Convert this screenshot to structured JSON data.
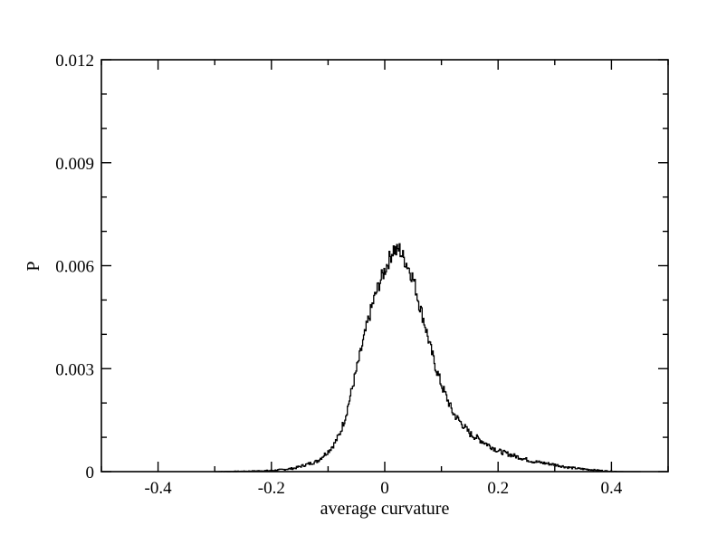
{
  "chart_data": {
    "type": "line",
    "title": "",
    "xlabel": "average curvature",
    "ylabel": "P",
    "xlim": [
      -0.5,
      0.5
    ],
    "ylim": [
      0,
      0.012
    ],
    "x_ticks": [
      -0.4,
      -0.2,
      0,
      0.2,
      0.4
    ],
    "x_tick_labels": [
      "-0.4",
      "-0.2",
      "0",
      "0.2",
      "0.4"
    ],
    "y_ticks": [
      0,
      0.003,
      0.006,
      0.009,
      0.012
    ],
    "y_tick_labels": [
      "0",
      "0.003",
      "0.006",
      "0.009",
      "0.012"
    ],
    "x_minor_step": 0.1,
    "y_minor_step": 0.001,
    "grid": false,
    "legend": "none",
    "series": [
      {
        "color": "#000000",
        "x": [
          -0.3,
          -0.25,
          -0.2,
          -0.18,
          -0.16,
          -0.14,
          -0.12,
          -0.1,
          -0.09,
          -0.08,
          -0.07,
          -0.06,
          -0.05,
          -0.04,
          -0.03,
          -0.02,
          -0.01,
          0.0,
          0.01,
          0.015,
          0.02,
          0.025,
          0.03,
          0.04,
          0.05,
          0.06,
          0.07,
          0.08,
          0.09,
          0.1,
          0.11,
          0.12,
          0.13,
          0.14,
          0.15,
          0.16,
          0.18,
          0.2,
          0.22,
          0.24,
          0.26,
          0.28,
          0.3,
          0.32,
          0.34,
          0.36,
          0.38,
          0.4,
          0.42,
          0.45
        ],
        "y": [
          0.0,
          1e-05,
          3e-05,
          6e-05,
          0.0001,
          0.0002,
          0.0003,
          0.0006,
          0.0008,
          0.0011,
          0.0016,
          0.0023,
          0.003,
          0.0037,
          0.0044,
          0.005,
          0.0055,
          0.0059,
          0.0063,
          0.0065,
          0.0064,
          0.0065,
          0.0063,
          0.006,
          0.0056,
          0.0049,
          0.0043,
          0.0036,
          0.003,
          0.0025,
          0.0021,
          0.0017,
          0.0015,
          0.0013,
          0.0011,
          0.001,
          0.0008,
          0.0006,
          0.0005,
          0.0004,
          0.0003,
          0.00025,
          0.0002,
          0.00013,
          9e-05,
          6e-05,
          3e-05,
          1e-05,
          0.0,
          0.0
        ]
      }
    ]
  }
}
